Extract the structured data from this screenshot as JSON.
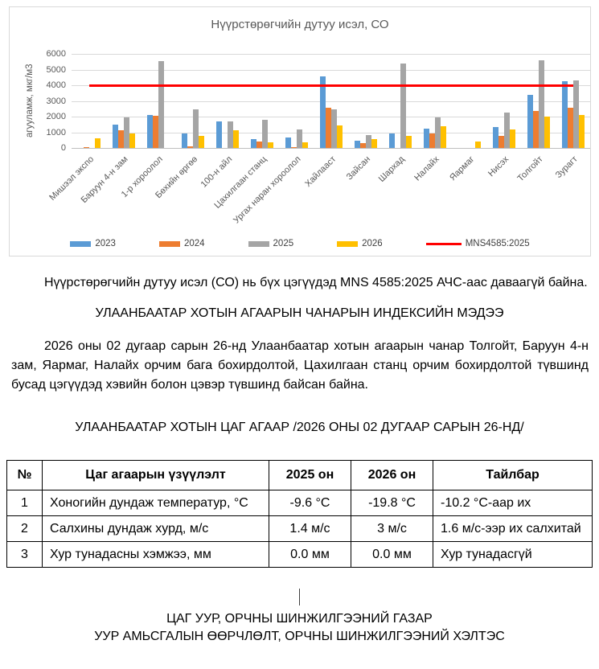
{
  "chart_data": {
    "type": "bar",
    "title": "Нүүрстөрөгчийн дутуу исэл, СО",
    "xlabel": "",
    "ylabel": "агууламж, мкг/м3",
    "ylim": [
      0,
      6000
    ],
    "yticks": [
      0,
      1000,
      2000,
      3000,
      4000,
      5000,
      6000
    ],
    "grid": true,
    "legend_position": "bottom",
    "categories": [
      "Мишээл экспо",
      "Баруун 4-н зам",
      "1-р хороолол",
      "Бөхийн өргөө",
      "100-н айл",
      "Цахилгаан станц",
      "Ургах наран хороолол",
      "Хайлааст",
      "Зайсан",
      "Шархад",
      "Налайх",
      "Яармаг",
      "Нисэх",
      "Толгойт",
      "Зурагт"
    ],
    "series": [
      {
        "name": "2023",
        "color": "#5B9BD5",
        "values": [
          0,
          1500,
          2080,
          930,
          1700,
          560,
          650,
          4550,
          450,
          930,
          1250,
          0,
          1350,
          3400,
          4250
        ]
      },
      {
        "name": "2024",
        "color": "#ED7D31",
        "values": [
          70,
          1130,
          2030,
          120,
          0,
          400,
          70,
          2560,
          330,
          0,
          930,
          0,
          780,
          2350,
          2550
        ]
      },
      {
        "name": "2025",
        "color": "#A5A5A5",
        "values": [
          0,
          1930,
          5550,
          2450,
          1700,
          1780,
          1190,
          2460,
          800,
          5400,
          1930,
          0,
          2250,
          5600,
          4330
        ]
      },
      {
        "name": "2026",
        "color": "#FFC000",
        "values": [
          600,
          920,
          0,
          780,
          1130,
          340,
          340,
          1450,
          560,
          760,
          1400,
          400,
          1200,
          2000,
          2120
        ]
      }
    ],
    "limit_line": {
      "name": "MNS4585:2025",
      "color": "#FF0000",
      "value": 4000
    }
  },
  "doc": {
    "paragraph1": "Нүүрстөрөгчийн дутуу исэл (СО) нь бүх цэгүүдэд MNS 4585:2025 АЧС-аас даваагүй байна.",
    "heading1": "УЛААНБААТАР ХОТЫН АГААРЫН ЧАНАРЫН ИНДЕКСИЙН МЭДЭЭ",
    "paragraph2": "2026 оны 02 дугаар сарын 26-нд Улаанбаатар хотын агаарын чанар Толгойт, Баруун 4-н зам, Яармаг, Налайх орчим бага бохирдолтой, Цахилгаан станц орчим бохирдолтой түвшинд бусад цэгүүдэд хэвийн болон цэвэр түвшинд байсан байна.",
    "heading2": "УЛААНБААТАР ХОТЫН ЦАГ АГААР /2026 ОНЫ 02 ДУГААР САРЫН 26-НД/"
  },
  "table": {
    "headers": [
      "№",
      "Цаг агаарын үзүүлэлт",
      "2025 он",
      "2026 он",
      "Тайлбар"
    ],
    "rows": [
      [
        "1",
        "Хоногийн дундаж температур, °С",
        "-9.6 °С",
        "-19.8 °С",
        "-10.2 °С-аар их"
      ],
      [
        "2",
        "Салхины дундаж хурд, м/с",
        "1.4 м/с",
        "3 м/с",
        "1.6 м/с-ээр их салхитай"
      ],
      [
        "3",
        "Хур тунадасны хэмжээ, мм",
        "0.0 мм",
        "0.0 мм",
        "Хур тунадасгүй"
      ]
    ]
  },
  "footer": {
    "org_line1": "ЦАГ УУР, ОРЧНЫ ШИНЖИЛГЭЭНИЙ ГАЗАР",
    "org_line2": "УУР АМЬСГАЛЫН ӨӨРЧЛӨЛТ, ОРЧНЫ ШИНЖИЛГЭЭНИЙ ХЭЛТЭС"
  }
}
